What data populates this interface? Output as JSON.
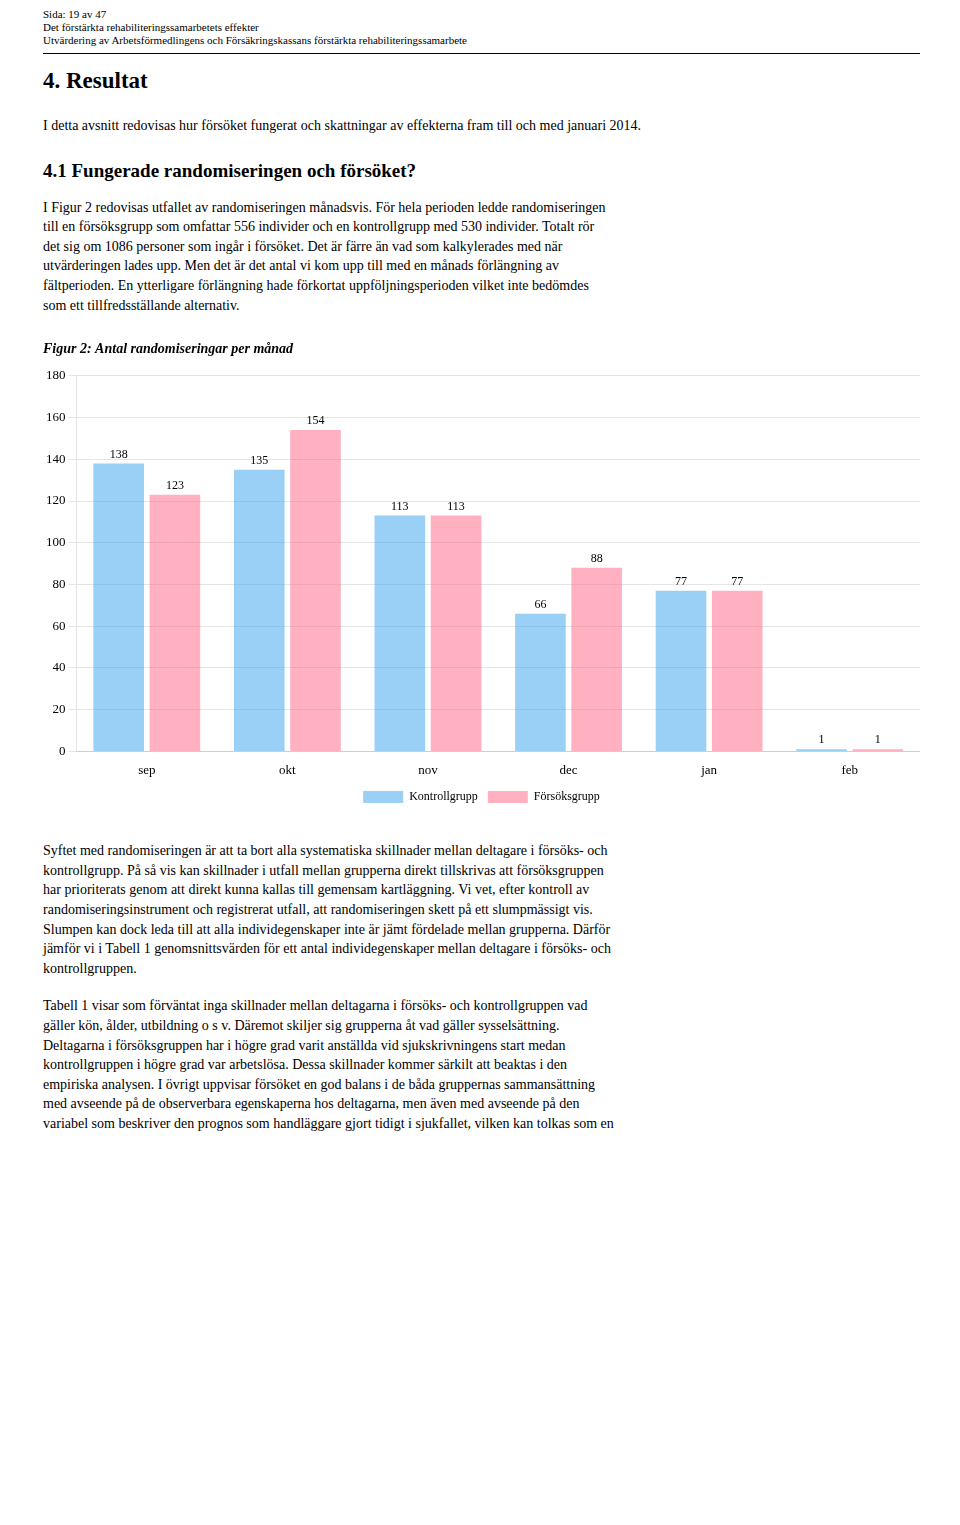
{
  "header_lines": [
    "Sida: 19 av 47",
    "Det förstärkta rehabiliteringssamarbetets effekter",
    "Utvärdering av Arbetsförmedlingens och Försäkringskassans förstärkta rehabiliteringssamarbete"
  ],
  "section_title": "4. Resultat",
  "para1": "I detta avsnitt redovisas hur försöket fungerat och skattningar av effekterna fram till och med januari 2014.",
  "subsection_title": "4.1 Fungerade randomiseringen och försöket?",
  "para2": "I Figur 2 redovisas utfallet av randomiseringen månadsvis. För hela perioden ledde randomiseringen\ntill en försöksgrupp som omfattar 556 individer och en kontrollgrupp med 530 individer. Totalt rör\ndet sig om 1086 personer som ingår i försöket. Det är färre än vad som kalkylerades med när\nutvärderingen lades upp. Men det är det antal vi kom upp till med en månads förlängning av\nfältperioden. En ytterligare förlängning hade förkortat uppföljningsperioden vilket inte bedömdes\nsom ett tillfredsställande alternativ.",
  "chart_data": {
    "type": "bar",
    "title": "Figur 2: Antal randomiseringar per månad",
    "categories": [
      "sep",
      "okt",
      "nov",
      "dec",
      "jan",
      "feb"
    ],
    "series": [
      {
        "name": "Kontrollgrupp",
        "values": [
          138,
          135,
          113,
          66,
          77,
          1
        ]
      },
      {
        "name": "Försöksgrupp",
        "values": [
          123,
          154,
          113,
          88,
          77,
          1
        ]
      }
    ],
    "ylim": [
      0,
      180
    ],
    "yticks": [
      0,
      20,
      40,
      60,
      80,
      100,
      120,
      140,
      160,
      180
    ],
    "grid": "y",
    "legend": "bottom",
    "data_labels": true
  },
  "para3": "Syftet med randomiseringen är att ta bort alla systematiska skillnader mellan deltagare i försöks- och\nkontrollgrupp. På så vis kan skillnader i utfall mellan grupperna direkt tillskrivas att försöksgruppen\nhar prioriterats genom att direkt kunna kallas till gemensam kartläggning. Vi vet, efter kontroll av\nrandomiseringsinstrument och registrerat utfall, att randomiseringen skett på ett slumpmässigt vis.\nSlumpen kan dock leda till att alla individegenskaper inte är jämt fördelade mellan grupperna. Därför\njämför vi i Tabell 1 genomsnittsvärden för ett antal individegenskaper mellan deltagare i försöks- och\nkontrollgruppen.",
  "para4": "Tabell 1 visar som förväntat inga skillnader mellan deltagarna i försöks- och kontrollgruppen vad\ngäller kön, ålder, utbildning o s v. Däremot skiljer sig grupperna åt vad gäller sysselsättning.\nDeltagarna i försöksgruppen har i högre grad varit anställda vid sjukskrivningens start medan\nkontrollgruppen i högre grad var arbetslösa. Dessa skillnader kommer särkilt att beaktas i den\nempiriska analysen. I övrigt uppvisar försöket en god balans i de båda gruppernas sammansättning\nmed avseende på de observerbara egenskaperna hos deltagarna, men även med avseende på den\nvariabel som beskriver den prognos som handläggare gjort tidigt i sjukfallet, vilken kan tolkas som en"
}
